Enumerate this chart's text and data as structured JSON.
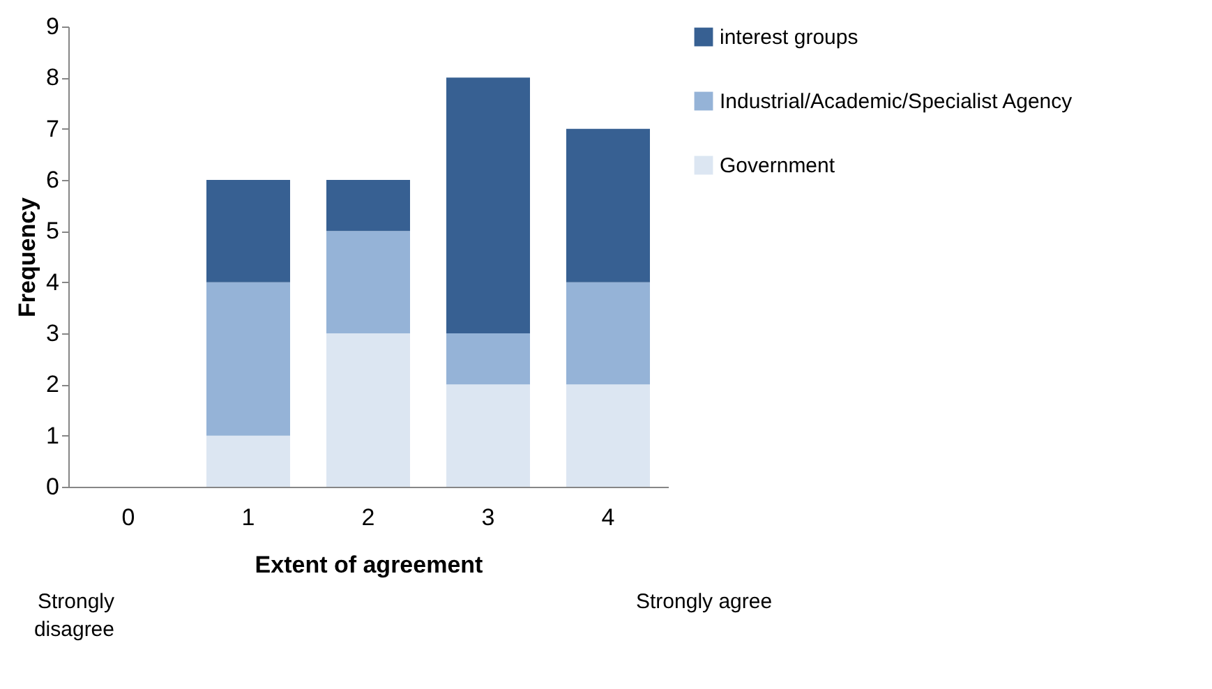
{
  "chart_data": {
    "type": "bar",
    "stacked": true,
    "xlabel": "Extent of agreement",
    "ylabel": "Frequency",
    "categories": [
      "0",
      "1",
      "2",
      "3",
      "4"
    ],
    "series": [
      {
        "name": "Government",
        "color": "#dce6f2",
        "values": [
          0,
          1,
          3,
          2,
          2
        ]
      },
      {
        "name": "Industrial/Academic/Specialist  Agency",
        "color": "#95b3d7",
        "values": [
          0,
          3,
          2,
          1,
          2
        ]
      },
      {
        "name": "interest groups",
        "color": "#376092",
        "values": [
          0,
          2,
          1,
          5,
          3
        ]
      }
    ],
    "ylim": [
      0,
      9
    ],
    "yticks": [
      0,
      1,
      2,
      3,
      4,
      5,
      6,
      7,
      8,
      9
    ],
    "grid": false,
    "legend": "right",
    "annotations": [
      "Strongly disagree",
      "Strongly agree"
    ]
  }
}
